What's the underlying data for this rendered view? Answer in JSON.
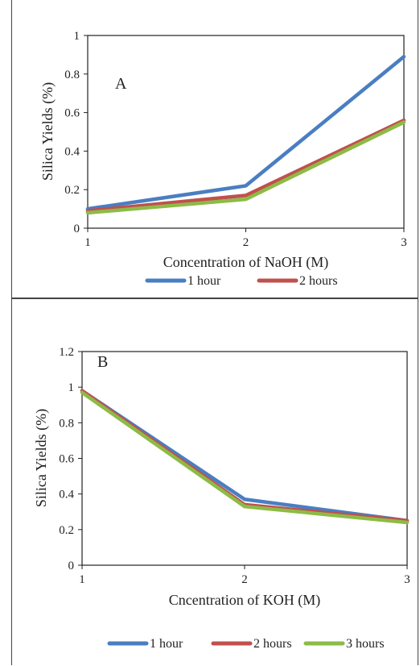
{
  "chart_data": [
    {
      "type": "line",
      "panel_label": "A",
      "xlabel": "Concentration of NaOH (M)",
      "ylabel": "Silica Yields (%)",
      "x": [
        1,
        2,
        3
      ],
      "xlim": [
        1,
        3
      ],
      "xticks": [
        "1",
        "2",
        "3"
      ],
      "ylim": [
        0,
        1
      ],
      "yticks": [
        "0",
        "0.2",
        "0.4",
        "0.6",
        "0.8",
        "1"
      ],
      "grid": false,
      "legend_position": "bottom",
      "series": [
        {
          "name": "1 hour",
          "color": "#4a7ec2",
          "values": [
            0.1,
            0.22,
            0.89
          ]
        },
        {
          "name": "2 hours",
          "color": "#c0504d",
          "values": [
            0.09,
            0.17,
            0.56
          ]
        },
        {
          "color": "#8dbb46",
          "values": [
            0.08,
            0.15,
            0.55
          ]
        }
      ]
    },
    {
      "type": "line",
      "panel_label": "B",
      "xlabel": "Cncentration of KOH (M)",
      "ylabel": "Silica Yields (%)",
      "x": [
        1,
        2,
        3
      ],
      "xlim": [
        1,
        3
      ],
      "xticks": [
        "1",
        "2",
        "3"
      ],
      "ylim": [
        0,
        1.2
      ],
      "yticks": [
        "0",
        "0.2",
        "0.4",
        "0.6",
        "0.8",
        "1",
        "1.2"
      ],
      "grid": false,
      "legend_position": "bottom",
      "series": [
        {
          "name": "1 hour",
          "color": "#4a7ec2",
          "values": [
            0.98,
            0.37,
            0.25
          ]
        },
        {
          "name": "2 hours",
          "color": "#c0504d",
          "values": [
            0.98,
            0.34,
            0.25
          ]
        },
        {
          "name": "3 hours",
          "color": "#8dbb46",
          "values": [
            0.97,
            0.33,
            0.24
          ]
        }
      ]
    }
  ]
}
